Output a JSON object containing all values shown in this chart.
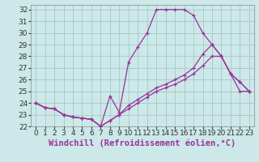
{
  "background_color": "#cce8e8",
  "grid_color": "#aacccc",
  "line_color": "#993399",
  "marker": "+",
  "xlabel": "Windchill (Refroidissement éolien,°C)",
  "xlabel_fontsize": 7.5,
  "tick_fontsize": 6.5,
  "xlim": [
    -0.5,
    23.5
  ],
  "ylim": [
    22,
    32.4
  ],
  "yticks": [
    22,
    23,
    24,
    25,
    26,
    27,
    28,
    29,
    30,
    31,
    32
  ],
  "xticks": [
    0,
    1,
    2,
    3,
    4,
    5,
    6,
    7,
    8,
    9,
    10,
    11,
    12,
    13,
    14,
    15,
    16,
    17,
    18,
    19,
    20,
    21,
    22,
    23
  ],
  "series": [
    [
      24.0,
      23.6,
      23.5,
      23.0,
      22.8,
      22.7,
      22.6,
      22.0,
      24.6,
      23.2,
      27.5,
      28.8,
      30.0,
      32.0,
      32.0,
      32.0,
      32.0,
      31.5,
      30.0,
      29.0,
      28.0,
      26.5,
      25.0,
      25.0
    ],
    [
      24.0,
      23.6,
      23.5,
      23.0,
      22.8,
      22.7,
      22.6,
      22.0,
      22.5,
      23.0,
      23.5,
      24.0,
      24.5,
      25.0,
      25.3,
      25.6,
      26.0,
      26.5,
      27.2,
      28.0,
      28.0,
      26.5,
      25.8,
      25.0
    ],
    [
      24.0,
      23.6,
      23.5,
      23.0,
      22.8,
      22.7,
      22.6,
      22.0,
      22.5,
      23.0,
      23.8,
      24.3,
      24.8,
      25.3,
      25.6,
      26.0,
      26.4,
      27.0,
      28.2,
      29.0,
      28.0,
      26.5,
      25.8,
      25.0
    ]
  ]
}
